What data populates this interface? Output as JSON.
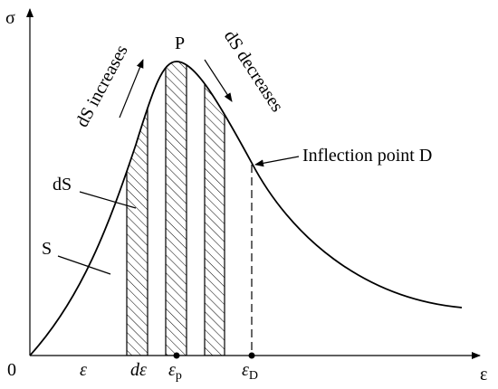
{
  "axes": {
    "y_label": "σ",
    "x_label": "ε",
    "origin": "0"
  },
  "peak_label": "P",
  "increase_label": "dS increases",
  "decrease_label": "dS decreases",
  "inflection_label": "Inflection point D",
  "strip_label": "dS",
  "area_label": "S",
  "x_marks": [
    {
      "symbol": "ε"
    },
    {
      "symbol": "dε"
    },
    {
      "symbol": "ε",
      "subscript": "p"
    },
    {
      "symbol": "ε",
      "subscript": "D"
    }
  ]
}
